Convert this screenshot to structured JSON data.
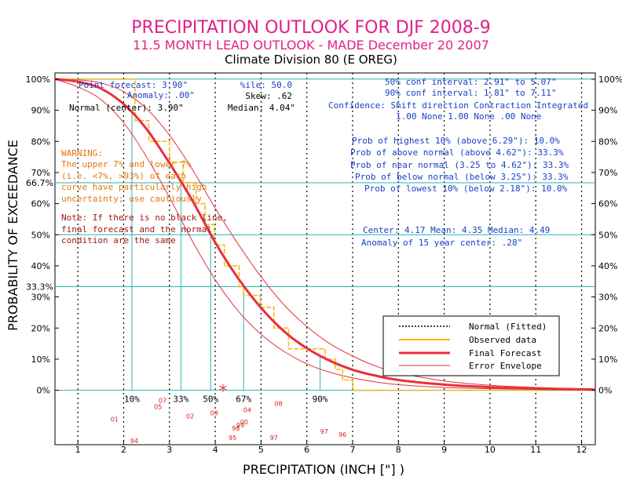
{
  "header": {
    "title": "PRECIPITATION OUTLOOK FOR DJF 2008-9",
    "subtitle": "11.5 MONTH LEAD OUTLOOK   - MADE December 20 2007",
    "division": "Climate Division 80 (E OREG)"
  },
  "stats_left": {
    "point_forecast": "Point forecast: 3.90\"",
    "anomaly": "Anomaly: .00\"",
    "normal_center": "Normal (center): 3.90\"",
    "percentile": "%ile: 50.0",
    "skew": "Skew: .62",
    "median": "Median: 4.04\""
  },
  "stats_right": {
    "conf50": "50% conf interval: 2.91\" to 5.07\"",
    "conf90": "90% conf interval: 1.81\" to 7.11\"",
    "confidence_header": "Confidence: Shift direction   Contraction  Integrated",
    "confidence_values": "1.00 None        1.00 None     .00 None"
  },
  "probabilities": [
    "Prob of highest 10% (above 6.29\"): 10.0%",
    "Prob of above normal (above 4.62\"): 33.3%",
    "Prob of near normal (3.25 to 4.62\"): 33.3%",
    "Prob of below normal (below 3.25\"): 33.3%",
    "Prob of lowest 10% (below 2.18\"): 10.0%"
  ],
  "center_stats": {
    "line1": "Center: 4.17 Mean: 4.35 Median: 4.49",
    "line2": "Anomaly of 15 year center: .28\""
  },
  "warning": {
    "lines": [
      "WARNING:",
      "The upper 7% and lower 7%",
      "(i.e. <7%, >93%) of each",
      "curve have particularly high",
      "uncertainty; use cautiously"
    ]
  },
  "note": {
    "lines": [
      "Note: If there is no black line,",
      "final forecast and the normal",
      "condition are the same"
    ]
  },
  "legend": [
    {
      "label": "Normal (Fitted)",
      "style": "dotted",
      "color": "#000000"
    },
    {
      "label": "Observed data",
      "style": "solid",
      "color": "#ffb400"
    },
    {
      "label": "Final Forecast",
      "style": "thick",
      "color": "#e8303a"
    },
    {
      "label": "Error Envelope",
      "style": "thin",
      "color": "#e8303a"
    }
  ],
  "colors": {
    "title": "#e0208a",
    "stats": "#1a40c8",
    "teal": "#28b4b4",
    "forecast": "#e8303a",
    "observed": "#ffb400",
    "warning": "#e07810",
    "note": "#a01818",
    "years": "#d02020"
  },
  "chart_data": {
    "type": "line",
    "xlabel": "PRECIPITATION (INCH [\"] )",
    "ylabel": "PROBABILITY OF EXCEEDANCE",
    "xlim": [
      0.5,
      12.3
    ],
    "ylim": [
      -17.5,
      102
    ],
    "x_ticks": [
      1,
      2,
      3,
      4,
      5,
      6,
      7,
      8,
      9,
      10,
      11,
      12
    ],
    "y_ticks": [
      0,
      10,
      20,
      30,
      40,
      50,
      60,
      70,
      80,
      90,
      100
    ],
    "y_tick_labels": [
      "0%",
      "10%",
      "20%",
      "30%",
      "40%",
      "50%",
      "60%",
      "70%",
      "80%",
      "90%",
      "100%"
    ],
    "threshold_labels": [
      {
        "y": 66.7,
        "label": "66.7%"
      },
      {
        "y": 33.3,
        "label": "33.3%"
      }
    ],
    "quantile_markers": [
      {
        "x": 2.18,
        "label": "10%"
      },
      {
        "x": 3.25,
        "label": "33%"
      },
      {
        "x": 3.9,
        "label": "50%"
      },
      {
        "x": 4.62,
        "label": "67%"
      },
      {
        "x": 6.29,
        "label": "90%"
      }
    ],
    "final_forecast": {
      "x": [
        0.5,
        1.0,
        1.5,
        2.0,
        2.5,
        3.0,
        3.5,
        4.0,
        4.5,
        5.0,
        5.5,
        6.0,
        6.5,
        7.0,
        7.5,
        8.0,
        9.0,
        10.0,
        11.0,
        12.0,
        12.3
      ],
      "y": [
        100,
        99.2,
        97,
        92,
        84,
        73,
        61,
        47.5,
        36,
        26.5,
        19,
        13.5,
        9.5,
        6.6,
        4.7,
        3.3,
        1.8,
        1.0,
        0.5,
        0.3,
        0.2
      ]
    },
    "envelope_upper": {
      "x": [
        0.5,
        1.0,
        1.5,
        2.0,
        2.5,
        3.0,
        3.5,
        4.0,
        4.5,
        5.0,
        5.5,
        6.0,
        6.5,
        7.0,
        7.5,
        8.0,
        9.0,
        10.0,
        11.0,
        12.0,
        12.3
      ],
      "y": [
        100,
        99.8,
        98.8,
        96,
        90.5,
        82,
        71,
        58.5,
        47,
        36.5,
        27.5,
        20.5,
        15,
        11,
        7.8,
        5.6,
        3,
        1.6,
        0.9,
        0.5,
        0.4
      ]
    },
    "envelope_lower": {
      "x": [
        0.5,
        1.0,
        1.5,
        2.0,
        2.5,
        3.0,
        3.5,
        4.0,
        4.5,
        5.0,
        5.5,
        6.0,
        6.5,
        7.0,
        7.5,
        8.0,
        9.0,
        10.0,
        11.0,
        12.0,
        12.3
      ],
      "y": [
        100,
        97.5,
        93.5,
        86,
        75,
        62,
        48,
        35.5,
        25.5,
        18,
        12.5,
        8.5,
        5.8,
        4,
        2.7,
        1.8,
        0.9,
        0.5,
        0.3,
        0.15,
        0.1
      ]
    },
    "observed_steps": {
      "x": [
        0.5,
        2.25,
        2.25,
        2.55,
        2.55,
        3.0,
        3.0,
        3.3,
        3.3,
        3.58,
        3.58,
        3.78,
        3.78,
        3.98,
        3.98,
        4.2,
        4.2,
        4.52,
        4.52,
        4.62,
        4.62,
        4.98,
        4.98,
        5.28,
        5.28,
        5.6,
        5.6,
        6.0,
        6.0,
        6.4,
        6.4,
        6.62,
        6.62,
        6.78,
        6.78,
        7.0,
        7.0,
        12.3
      ],
      "y": [
        100,
        100,
        86.7,
        86.7,
        80,
        80,
        73.3,
        73.3,
        66.7,
        66.7,
        60,
        60,
        53.3,
        53.3,
        46.7,
        46.7,
        40,
        40,
        33.3,
        33.3,
        30.5,
        30.5,
        26.7,
        26.7,
        20,
        20,
        13.3,
        13.3,
        13.3,
        13.3,
        10,
        10,
        6.7,
        6.7,
        3.3,
        3.3,
        0,
        0
      ]
    },
    "normal_curve_note": "Final forecast and normal coincide (no black line visible)",
    "point_forecast_marker": {
      "x": 4.17,
      "y": 0
    },
    "year_points": [
      {
        "label": "01",
        "x": 1.8,
        "y": -10
      },
      {
        "label": "05",
        "x": 2.75,
        "y": -6
      },
      {
        "label": "07",
        "x": 2.85,
        "y": -4
      },
      {
        "label": "02",
        "x": 3.45,
        "y": -9
      },
      {
        "label": "03",
        "x": 3.98,
        "y": -8
      },
      {
        "label": "04",
        "x": 4.7,
        "y": -7
      },
      {
        "label": "08",
        "x": 5.38,
        "y": -5
      },
      {
        "label": "99",
        "x": 4.55,
        "y": -12
      },
      {
        "label": "00",
        "x": 4.63,
        "y": -11
      },
      {
        "label": "98",
        "x": 4.45,
        "y": -13
      },
      {
        "label": "95",
        "x": 4.38,
        "y": -16
      },
      {
        "label": "94",
        "x": 2.23,
        "y": -17
      },
      {
        "label": "97",
        "x": 5.28,
        "y": -16
      },
      {
        "label": "97",
        "x": 6.38,
        "y": -14
      },
      {
        "label": "96",
        "x": 6.78,
        "y": -15
      }
    ]
  }
}
